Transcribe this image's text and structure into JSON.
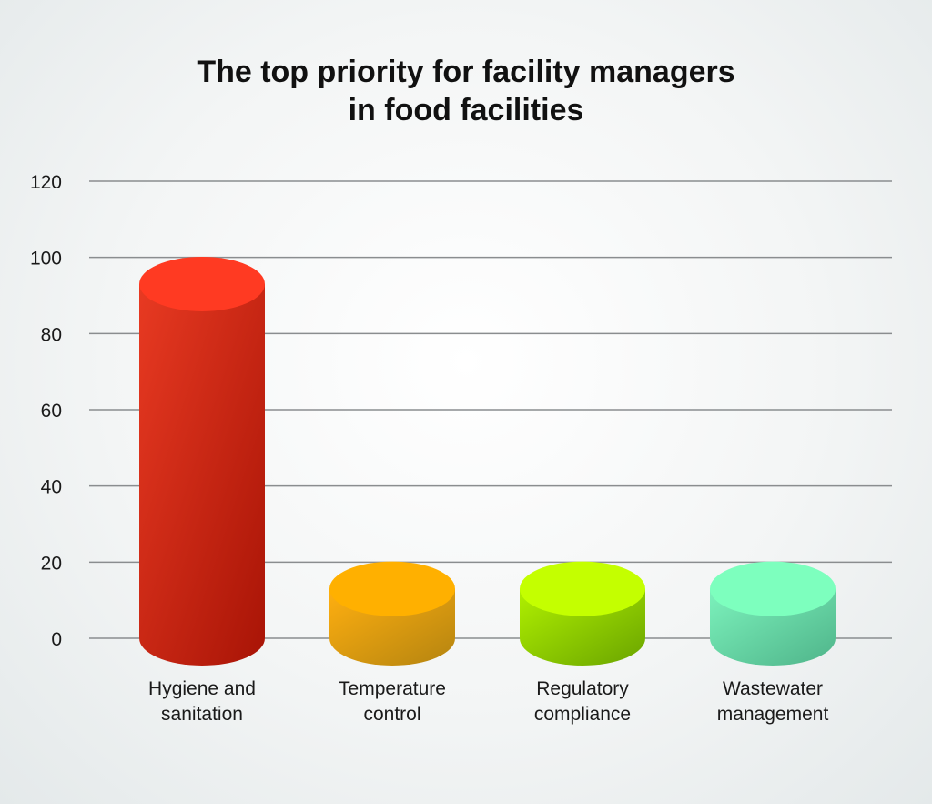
{
  "chart_data": {
    "type": "bar",
    "title_lines": [
      "The top priority for facility managers",
      "in food facilities"
    ],
    "categories": [
      [
        "Hygiene and",
        "sanitation"
      ],
      [
        "Temperature",
        "control"
      ],
      [
        "Regulatory",
        "compliance"
      ],
      [
        "Wastewater",
        "management"
      ]
    ],
    "values": [
      93,
      13,
      13,
      13
    ],
    "colors": [
      {
        "top": "#ff3a22",
        "light": "#e83a22",
        "dark": "#a81406"
      },
      {
        "top": "#ffb000",
        "light": "#ffaf10",
        "dark": "#b48410"
      },
      {
        "top": "#c4ff00",
        "light": "#b0f000",
        "dark": "#6aa400"
      },
      {
        "top": "#7dffbe",
        "light": "#7cf2bc",
        "dark": "#4fb48a"
      }
    ],
    "ylim": [
      0,
      120
    ],
    "yticks": [
      "0",
      "20",
      "40",
      "60",
      "80",
      "100",
      "120"
    ],
    "grid": true,
    "xlabel": "",
    "ylabel": ""
  }
}
